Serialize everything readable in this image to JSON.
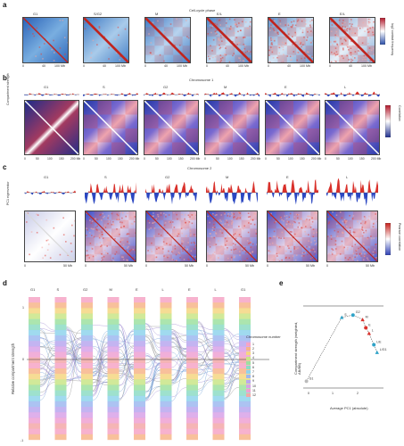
{
  "figure": {
    "panel_a": {
      "label": "a",
      "header": "Cell-cycle phase",
      "stages": [
        "G1",
        "S/G2",
        "M",
        "E/L",
        "E",
        "E/L"
      ],
      "axis_tick_first": "0",
      "axis_tick_mid": "40",
      "axis_tick_end": "100 Mb",
      "colorbar_label": "log2 contact frequency",
      "colorbar_colors": [
        "#2b4ea8",
        "#ffffff",
        "#b2182b"
      ]
    },
    "panel_b": {
      "label": "b",
      "header": "Chromosome 1",
      "ylabel_track": "Compartment strength",
      "stages": [
        "G1",
        "S",
        "G2",
        "M",
        "E",
        "L"
      ],
      "colorbar_label": "Correlation",
      "colorbar_colors": [
        "#1f2f8f",
        "#ffffff",
        "#b2182b"
      ],
      "tick_labels": [
        "0",
        "50",
        "100",
        "150",
        "200 Mb"
      ]
    },
    "panel_c": {
      "label": "c",
      "header": "Chromosome 2",
      "ylabel_track": "PC1 eigenvector",
      "stages": [
        "G1",
        "S",
        "G2",
        "M",
        "E",
        "L"
      ],
      "colorbar_label": "Pearson correlation",
      "tick_start": "0",
      "tick_end": "50 Mb"
    },
    "panel_d": {
      "label": "d",
      "stages": [
        "G1",
        "S",
        "G2",
        "M",
        "E",
        "L",
        "E",
        "L",
        "G1"
      ],
      "ylabel": "Relative compartment strength",
      "ytick_top": "1",
      "ytick_mid": "0",
      "ytick_bottom": "-1",
      "legend_title": "Chromosome number",
      "legend_items": [
        "1",
        "2",
        "3",
        "4",
        "5",
        "6",
        "7",
        "8",
        "9",
        "10",
        "11",
        "12"
      ]
    },
    "panel_e": {
      "label": "e",
      "ylabel": "Compartment strength (weighted, AB/BB)",
      "xlabel": "Average PC1 (absolute)",
      "xticks": [
        "0",
        "1",
        "2"
      ],
      "annotations": [
        "G1",
        "S",
        "G2",
        "M",
        "E",
        "L",
        "L/E",
        "L/G1"
      ]
    }
  },
  "chart_data": [
    {
      "type": "scatter",
      "title": "",
      "xlabel": "Average PC1 (absolute)",
      "ylabel": "Compartment strength (weighted, AB/BB)",
      "series": [
        {
          "name": "",
          "points": [
            {
              "x": 0.1,
              "y": 0.15,
              "label": "G1"
            },
            {
              "x": 1.2,
              "y": 1.55,
              "label": "S"
            },
            {
              "x": 1.55,
              "y": 1.6,
              "label": "G2"
            },
            {
              "x": 1.85,
              "y": 1.5,
              "label": "M"
            },
            {
              "x": 1.95,
              "y": 1.32,
              "label": "E"
            },
            {
              "x": 2.05,
              "y": 1.2,
              "label": "L"
            },
            {
              "x": 2.2,
              "y": 0.95,
              "label": "L/E"
            },
            {
              "x": 2.3,
              "y": 0.78,
              "label": "L/G1"
            }
          ]
        }
      ]
    }
  ]
}
